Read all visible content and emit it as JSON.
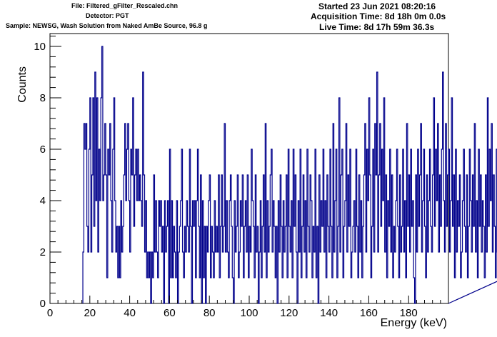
{
  "header": {
    "file": "File: Filtered_gFilter_Rescaled.chn",
    "detector": "Detector: PGT",
    "sample": "Sample: NEWSG, Wash Solution from Naked AmBe Source, 96.8 g",
    "started": "Started 23 Jun 2021 08:20:16",
    "acquisition": "Acquisition Time: 8d 18h 0m 0.0s",
    "live": "Live Time: 8d 17h 59m 36.3s"
  },
  "colors": {
    "histogram": "#00008b",
    "frame": "#000000",
    "background": "#ffffff"
  },
  "chart_data": {
    "type": "histogram",
    "xlabel": "Energy (keV)",
    "ylabel": "Counts",
    "xlim": [
      0,
      200
    ],
    "ylim": [
      0,
      10.5
    ],
    "x_ticks": [
      0,
      20,
      40,
      60,
      80,
      100,
      120,
      140,
      160,
      180
    ],
    "y_ticks": [
      0,
      2,
      4,
      6,
      8,
      10
    ],
    "grid": false,
    "legend": "none",
    "bin_width_keV": 0.5,
    "first_bin_keV": 16.5,
    "counts": [
      2,
      7,
      6,
      7,
      3,
      2,
      6,
      8,
      2,
      5,
      8,
      3,
      9,
      4,
      8,
      2,
      6,
      4,
      8,
      10,
      4,
      5,
      7,
      5,
      1,
      6,
      5,
      7,
      4,
      2,
      6,
      8,
      4,
      2,
      3,
      1,
      3,
      1,
      4,
      2,
      3,
      5,
      7,
      4,
      6,
      7,
      4,
      2,
      6,
      5,
      8,
      3,
      5,
      6,
      4,
      6,
      4,
      5,
      4,
      3,
      9,
      5,
      2,
      4,
      1,
      2,
      1,
      2,
      0,
      2,
      1,
      5,
      2,
      4,
      2,
      1,
      4,
      3,
      4,
      2,
      3,
      0,
      4,
      2,
      3,
      4,
      0,
      6,
      1,
      4,
      1,
      3,
      2,
      1,
      4,
      0,
      2,
      3,
      4,
      6,
      2,
      1,
      3,
      2,
      4,
      3,
      2,
      6,
      3,
      0,
      4,
      3,
      4,
      1,
      4,
      6,
      3,
      1,
      5,
      0,
      4,
      1,
      3,
      0,
      3,
      2,
      4,
      5,
      1,
      3,
      2,
      1,
      4,
      2,
      3,
      2,
      5,
      1,
      3,
      5,
      2,
      3,
      7,
      2,
      4,
      2,
      1,
      4,
      5,
      3,
      1,
      0,
      4,
      2,
      3,
      5,
      1,
      2,
      4,
      3,
      5,
      1,
      3,
      4,
      2,
      5,
      1,
      3,
      2,
      6,
      4,
      3,
      1,
      5,
      2,
      3,
      0,
      2,
      4,
      1,
      3,
      5,
      2,
      7,
      1,
      4,
      2,
      3,
      5,
      6,
      2,
      4,
      3,
      1,
      3,
      0,
      4,
      2,
      5,
      3,
      1,
      4,
      2,
      3,
      5,
      1,
      6,
      3,
      2,
      4,
      1,
      6,
      3,
      5,
      2,
      0,
      4,
      2,
      6,
      1,
      3,
      5,
      2,
      4,
      1,
      6,
      3,
      2,
      5,
      4,
      1,
      3,
      2,
      6,
      1,
      3,
      0,
      5,
      2,
      4,
      3,
      6,
      2,
      4,
      1,
      5,
      3,
      2,
      6,
      3,
      1,
      7,
      2,
      4,
      6,
      1,
      3,
      8,
      2,
      5,
      6,
      1,
      3,
      4,
      7,
      2,
      5,
      3,
      6,
      1,
      2,
      3,
      4,
      2,
      6,
      3,
      1,
      5,
      2,
      4,
      1,
      3,
      5,
      7,
      2,
      6,
      4,
      8,
      5,
      1,
      3,
      6,
      2,
      7,
      5,
      9,
      2,
      5,
      7,
      3,
      6,
      4,
      8,
      2,
      5,
      1,
      4,
      3,
      6,
      2,
      5,
      1,
      3,
      2,
      4,
      6,
      3,
      1,
      5,
      2,
      3,
      6,
      2,
      4,
      1,
      7,
      3,
      5,
      2,
      6,
      3,
      4,
      1,
      0,
      5,
      2,
      6,
      3,
      5,
      7,
      2,
      4,
      6,
      3,
      1,
      5,
      2,
      4,
      6,
      3,
      2,
      5,
      8,
      3,
      6,
      4,
      7,
      2,
      5,
      3,
      6,
      9,
      4,
      2,
      7,
      3,
      5,
      6,
      2,
      4,
      8,
      3,
      5,
      1,
      6,
      2,
      4,
      3,
      5,
      1,
      2,
      4,
      6,
      3,
      2,
      5,
      1,
      3,
      6,
      4,
      2,
      5,
      3,
      7,
      2,
      4,
      1,
      6,
      3,
      5,
      2,
      4,
      3,
      1,
      5,
      2,
      8,
      3,
      6,
      4,
      7,
      2,
      5,
      3,
      1,
      6,
      2,
      4,
      3,
      5,
      2,
      6,
      1,
      4,
      3,
      2,
      5,
      3,
      1,
      4,
      2,
      0,
      3,
      5,
      2,
      4,
      1,
      3,
      6,
      2,
      4,
      1,
      5,
      3,
      2,
      7,
      4,
      2,
      6,
      3,
      5,
      1,
      4,
      2,
      8,
      3,
      6,
      2,
      1,
      5,
      3,
      7,
      2,
      4,
      1,
      3,
      5,
      2,
      8,
      4,
      3,
      6,
      2,
      9,
      5,
      3,
      1,
      4,
      6,
      2,
      5,
      3,
      1,
      6,
      2,
      4,
      3,
      7,
      1,
      3,
      2,
      4,
      6,
      2,
      1,
      5,
      3,
      4,
      2,
      1,
      3,
      2,
      1,
      4,
      2,
      5,
      3,
      1,
      2,
      4,
      1,
      3,
      2,
      1,
      2,
      3,
      5,
      2,
      1,
      3,
      2,
      1,
      3,
      2,
      4,
      1,
      2,
      3,
      2,
      1,
      2,
      5,
      3,
      2,
      4,
      3,
      2,
      3
    ]
  }
}
